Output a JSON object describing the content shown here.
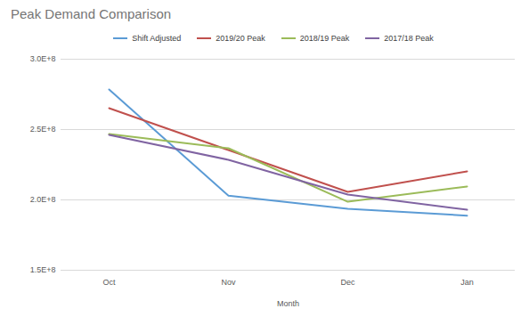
{
  "chart_data": {
    "type": "line",
    "title": "Peak Demand Comparison",
    "x_label": "Month",
    "categories": [
      "Oct",
      "Nov",
      "Dec",
      "Jan"
    ],
    "series": [
      {
        "name": "Shift Adjusted",
        "color": "#5b9bd5",
        "values": [
          278500000,
          203000000,
          193700000,
          188800000
        ]
      },
      {
        "name": "2019/20 Peak",
        "color": "#c0504d",
        "values": [
          265200000,
          235400000,
          205700000,
          220300000
        ]
      },
      {
        "name": "2018/19 Peak",
        "color": "#9bbb59",
        "values": [
          246800000,
          236700000,
          198700000,
          209500000
        ]
      },
      {
        "name": "2017/18 Peak",
        "color": "#8064a2",
        "values": [
          246200000,
          228500000,
          203800000,
          193000000
        ]
      }
    ],
    "ylim": [
      150000000,
      300000000
    ],
    "yticks": [
      {
        "value": 150000000,
        "label": "1.5E+8"
      },
      {
        "value": 200000000,
        "label": "2.0E+8"
      },
      {
        "value": 250000000,
        "label": "2.5E+8"
      },
      {
        "value": 300000000,
        "label": "3.0E+8"
      }
    ],
    "grid": true,
    "legend": "top"
  }
}
